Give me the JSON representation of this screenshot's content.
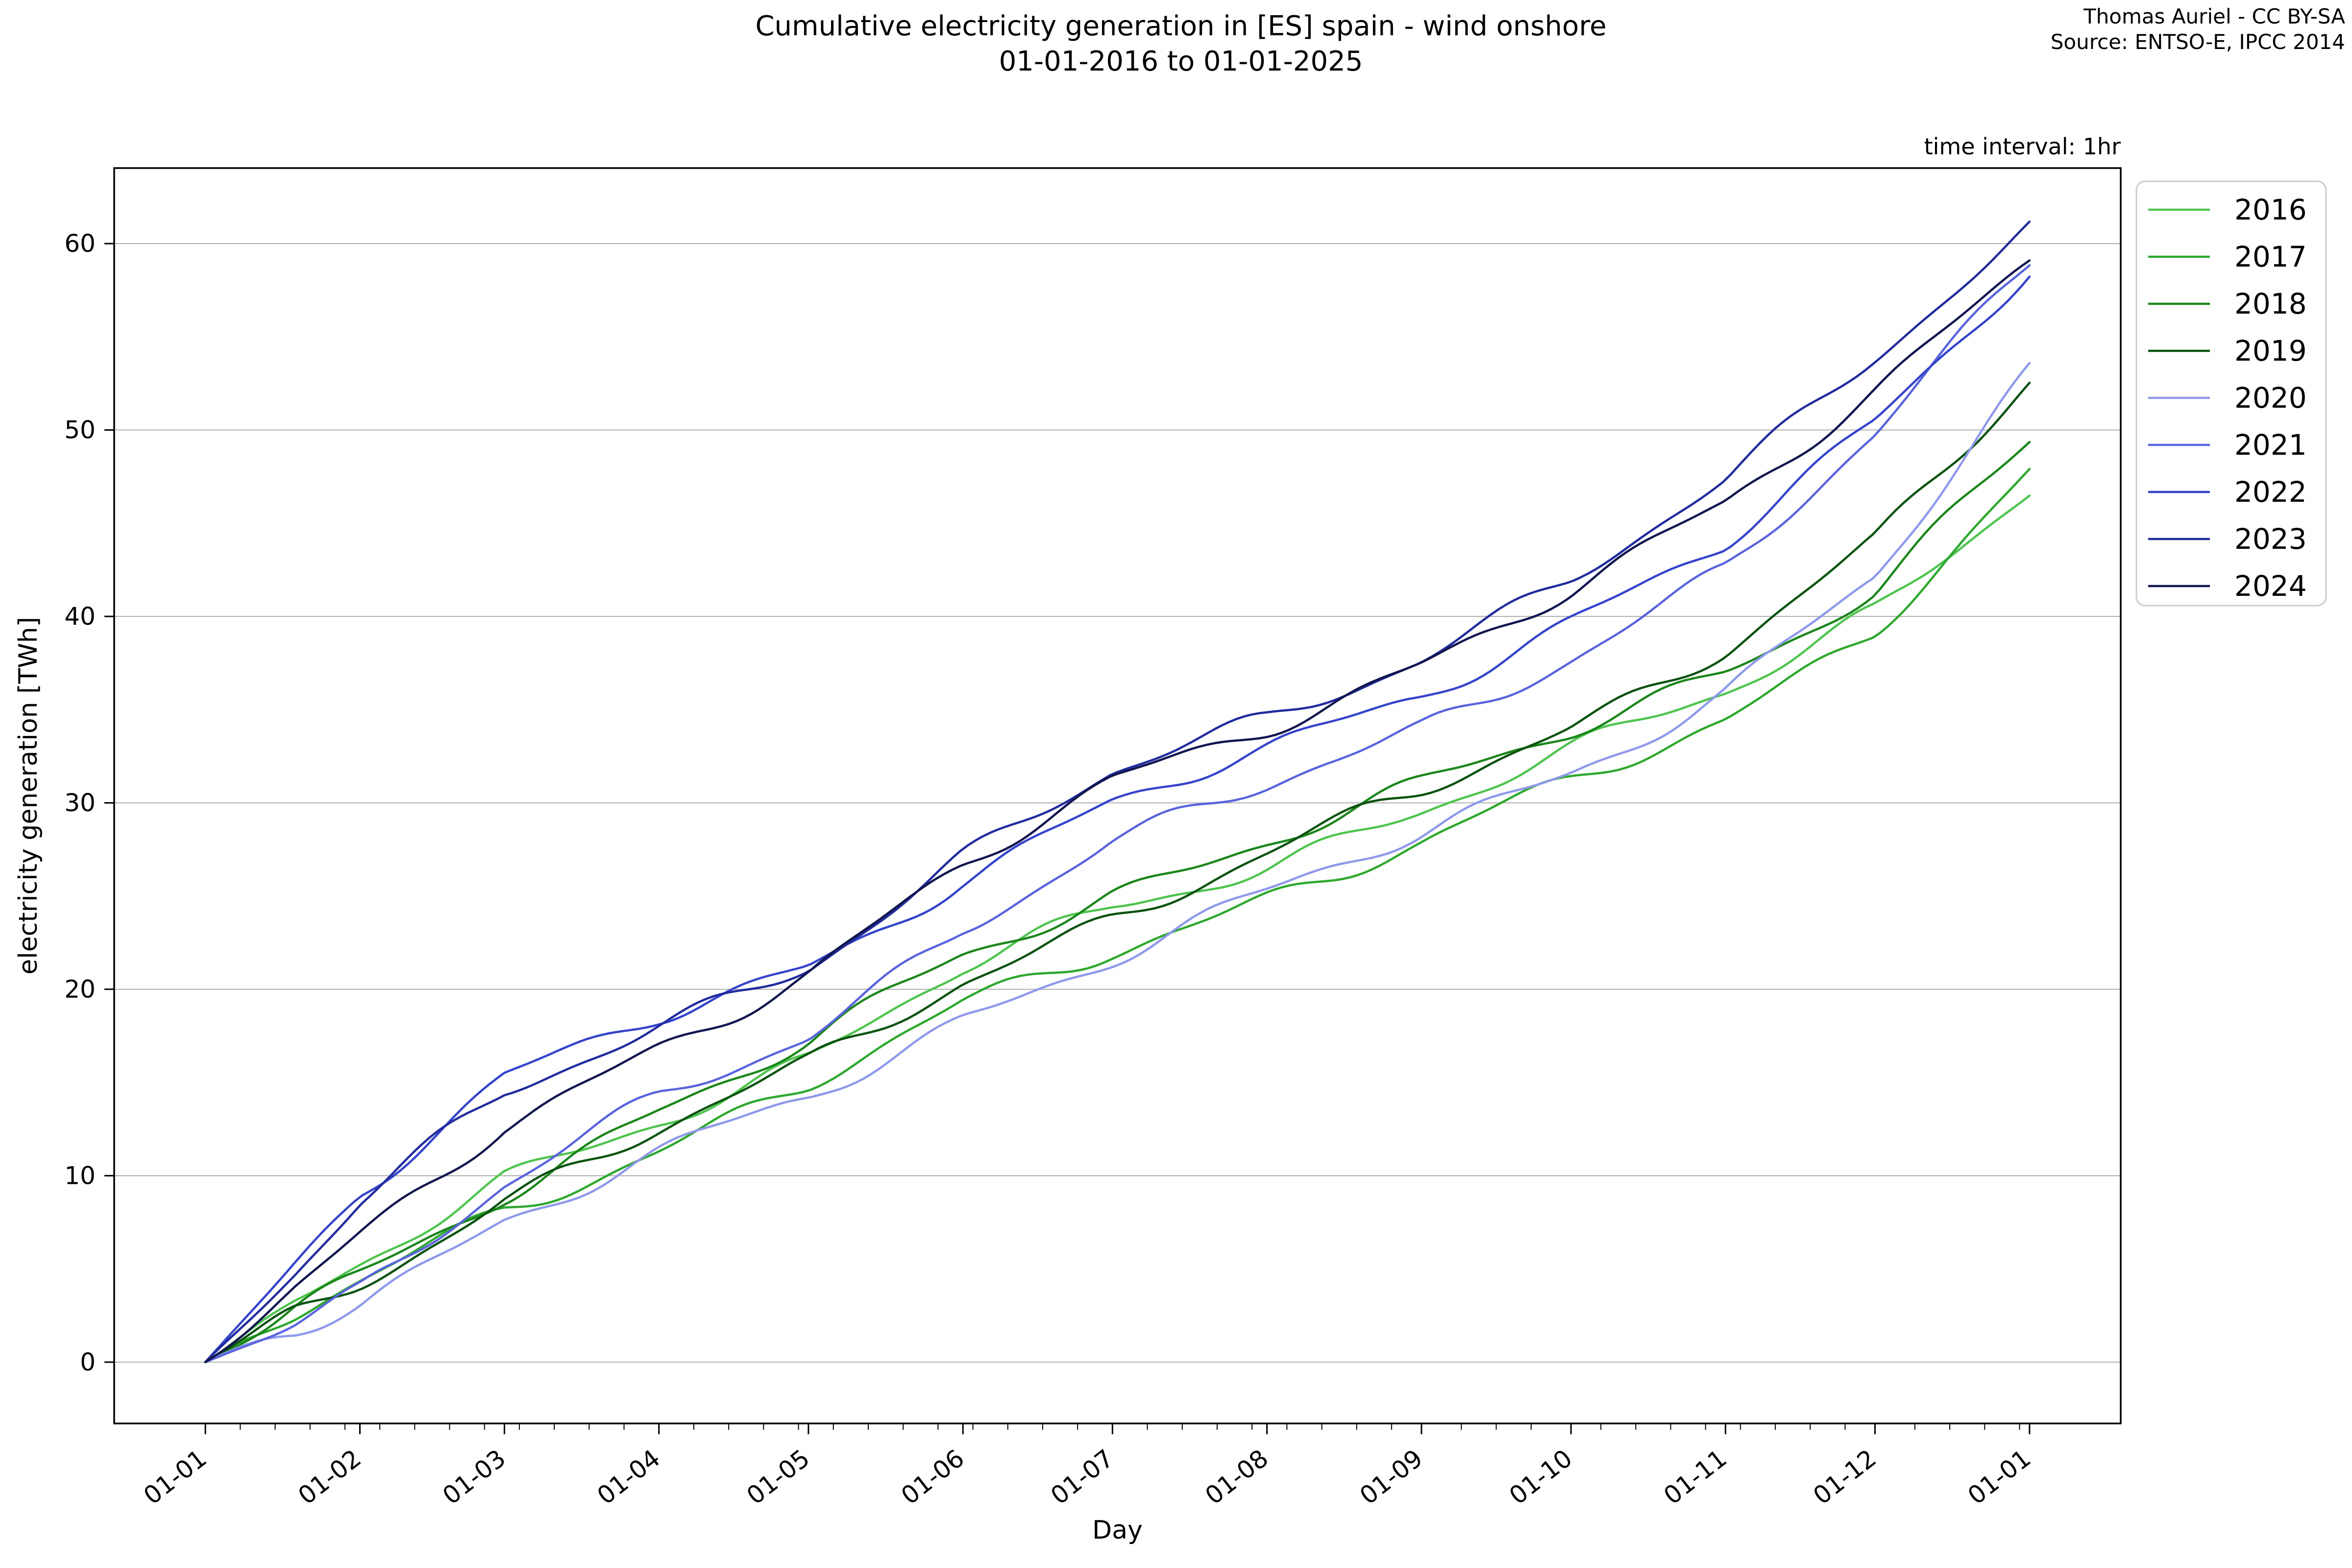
{
  "figure": {
    "title_line1": "Cumulative electricity generation in [ES] spain - wind onshore",
    "title_line2": "01-01-2016 to 01-01-2025",
    "attribution_line1": "Thomas Auriel - CC BY-SA",
    "attribution_line2": "Source: ENTSO-E, IPCC 2014",
    "note": "time interval: 1hr"
  },
  "chart_data": {
    "type": "line",
    "title": "Cumulative electricity generation in [ES] spain - wind onshore 01-01-2016 to 01-01-2025",
    "xlabel": "Day",
    "ylabel": "electricity generation [TWh]",
    "unit": "TWh",
    "grid": "horizontal-only",
    "legend_position": "outside-upper-right",
    "x_tick_labels": [
      "01-01",
      "01-02",
      "01-03",
      "01-04",
      "01-05",
      "01-06",
      "01-07",
      "01-08",
      "01-09",
      "01-10",
      "01-11",
      "01-12",
      "01-01"
    ],
    "x_tick_days": [
      0,
      31,
      60,
      91,
      121,
      152,
      182,
      213,
      244,
      274,
      305,
      335,
      366
    ],
    "minor_tick_step_days": 7,
    "y_ticks": [
      0,
      10,
      20,
      30,
      40,
      50,
      60
    ],
    "ylim": [
      -3.29,
      64.05
    ],
    "xlim_days": [
      -18.3,
      384.3
    ],
    "anchor_days": [
      0,
      31,
      60,
      91,
      121,
      152,
      182,
      213,
      244,
      274,
      305,
      335,
      366
    ],
    "series": [
      {
        "name": "2016",
        "color": "#4fc44f",
        "values": [
          0,
          5.0,
          9.8,
          13.2,
          16.2,
          21.0,
          24.3,
          26.8,
          29.6,
          32.6,
          36.0,
          40.5,
          46.9
        ]
      },
      {
        "name": "2017",
        "color": "#2ea82e",
        "values": [
          0,
          4.2,
          8.3,
          11.5,
          14.8,
          19.0,
          22.2,
          25.0,
          27.8,
          31.0,
          34.5,
          39.5,
          47.6
        ]
      },
      {
        "name": "2018",
        "color": "#1b861b",
        "values": [
          0,
          4.6,
          9.2,
          13.5,
          17.0,
          21.8,
          25.2,
          28.0,
          30.8,
          33.8,
          37.2,
          41.5,
          49.2
        ]
      },
      {
        "name": "2019",
        "color": "#0b5310",
        "values": [
          0,
          4.4,
          8.8,
          12.5,
          15.8,
          20.5,
          24.0,
          27.2,
          30.5,
          34.0,
          38.5,
          44.0,
          52.4
        ]
      },
      {
        "name": "2020",
        "color": "#8f99ea",
        "values": [
          0,
          3.4,
          7.6,
          11.0,
          14.2,
          18.5,
          21.8,
          25.0,
          28.3,
          31.8,
          36.0,
          42.0,
          53.0
        ]
      },
      {
        "name": "2021",
        "color": "#5a64dd",
        "values": [
          0,
          4.0,
          9.5,
          14.0,
          17.5,
          23.5,
          27.8,
          30.8,
          34.0,
          38.0,
          42.5,
          49.5,
          59.1
        ]
      },
      {
        "name": "2022",
        "color": "#3544cb",
        "values": [
          0,
          9.2,
          15.0,
          18.5,
          21.3,
          26.0,
          29.8,
          32.8,
          36.0,
          39.8,
          43.8,
          50.2,
          58.8
        ]
      },
      {
        "name": "2023",
        "color": "#222c9d",
        "values": [
          0,
          8.6,
          14.2,
          18.0,
          21.5,
          27.0,
          31.5,
          34.5,
          38.0,
          42.0,
          47.0,
          54.0,
          61.0
        ]
      },
      {
        "name": "2024",
        "color": "#12164f",
        "values": [
          0,
          6.5,
          12.5,
          17.0,
          21.0,
          26.5,
          31.0,
          34.2,
          37.5,
          41.3,
          45.8,
          52.3,
          59.3
        ]
      }
    ],
    "style": {
      "grid_color": "#b3b3b3",
      "spine_color": "#000000",
      "tick_label_color": "#000000",
      "legend_border_color": "#cccccc",
      "background_color": "#ffffff"
    }
  }
}
